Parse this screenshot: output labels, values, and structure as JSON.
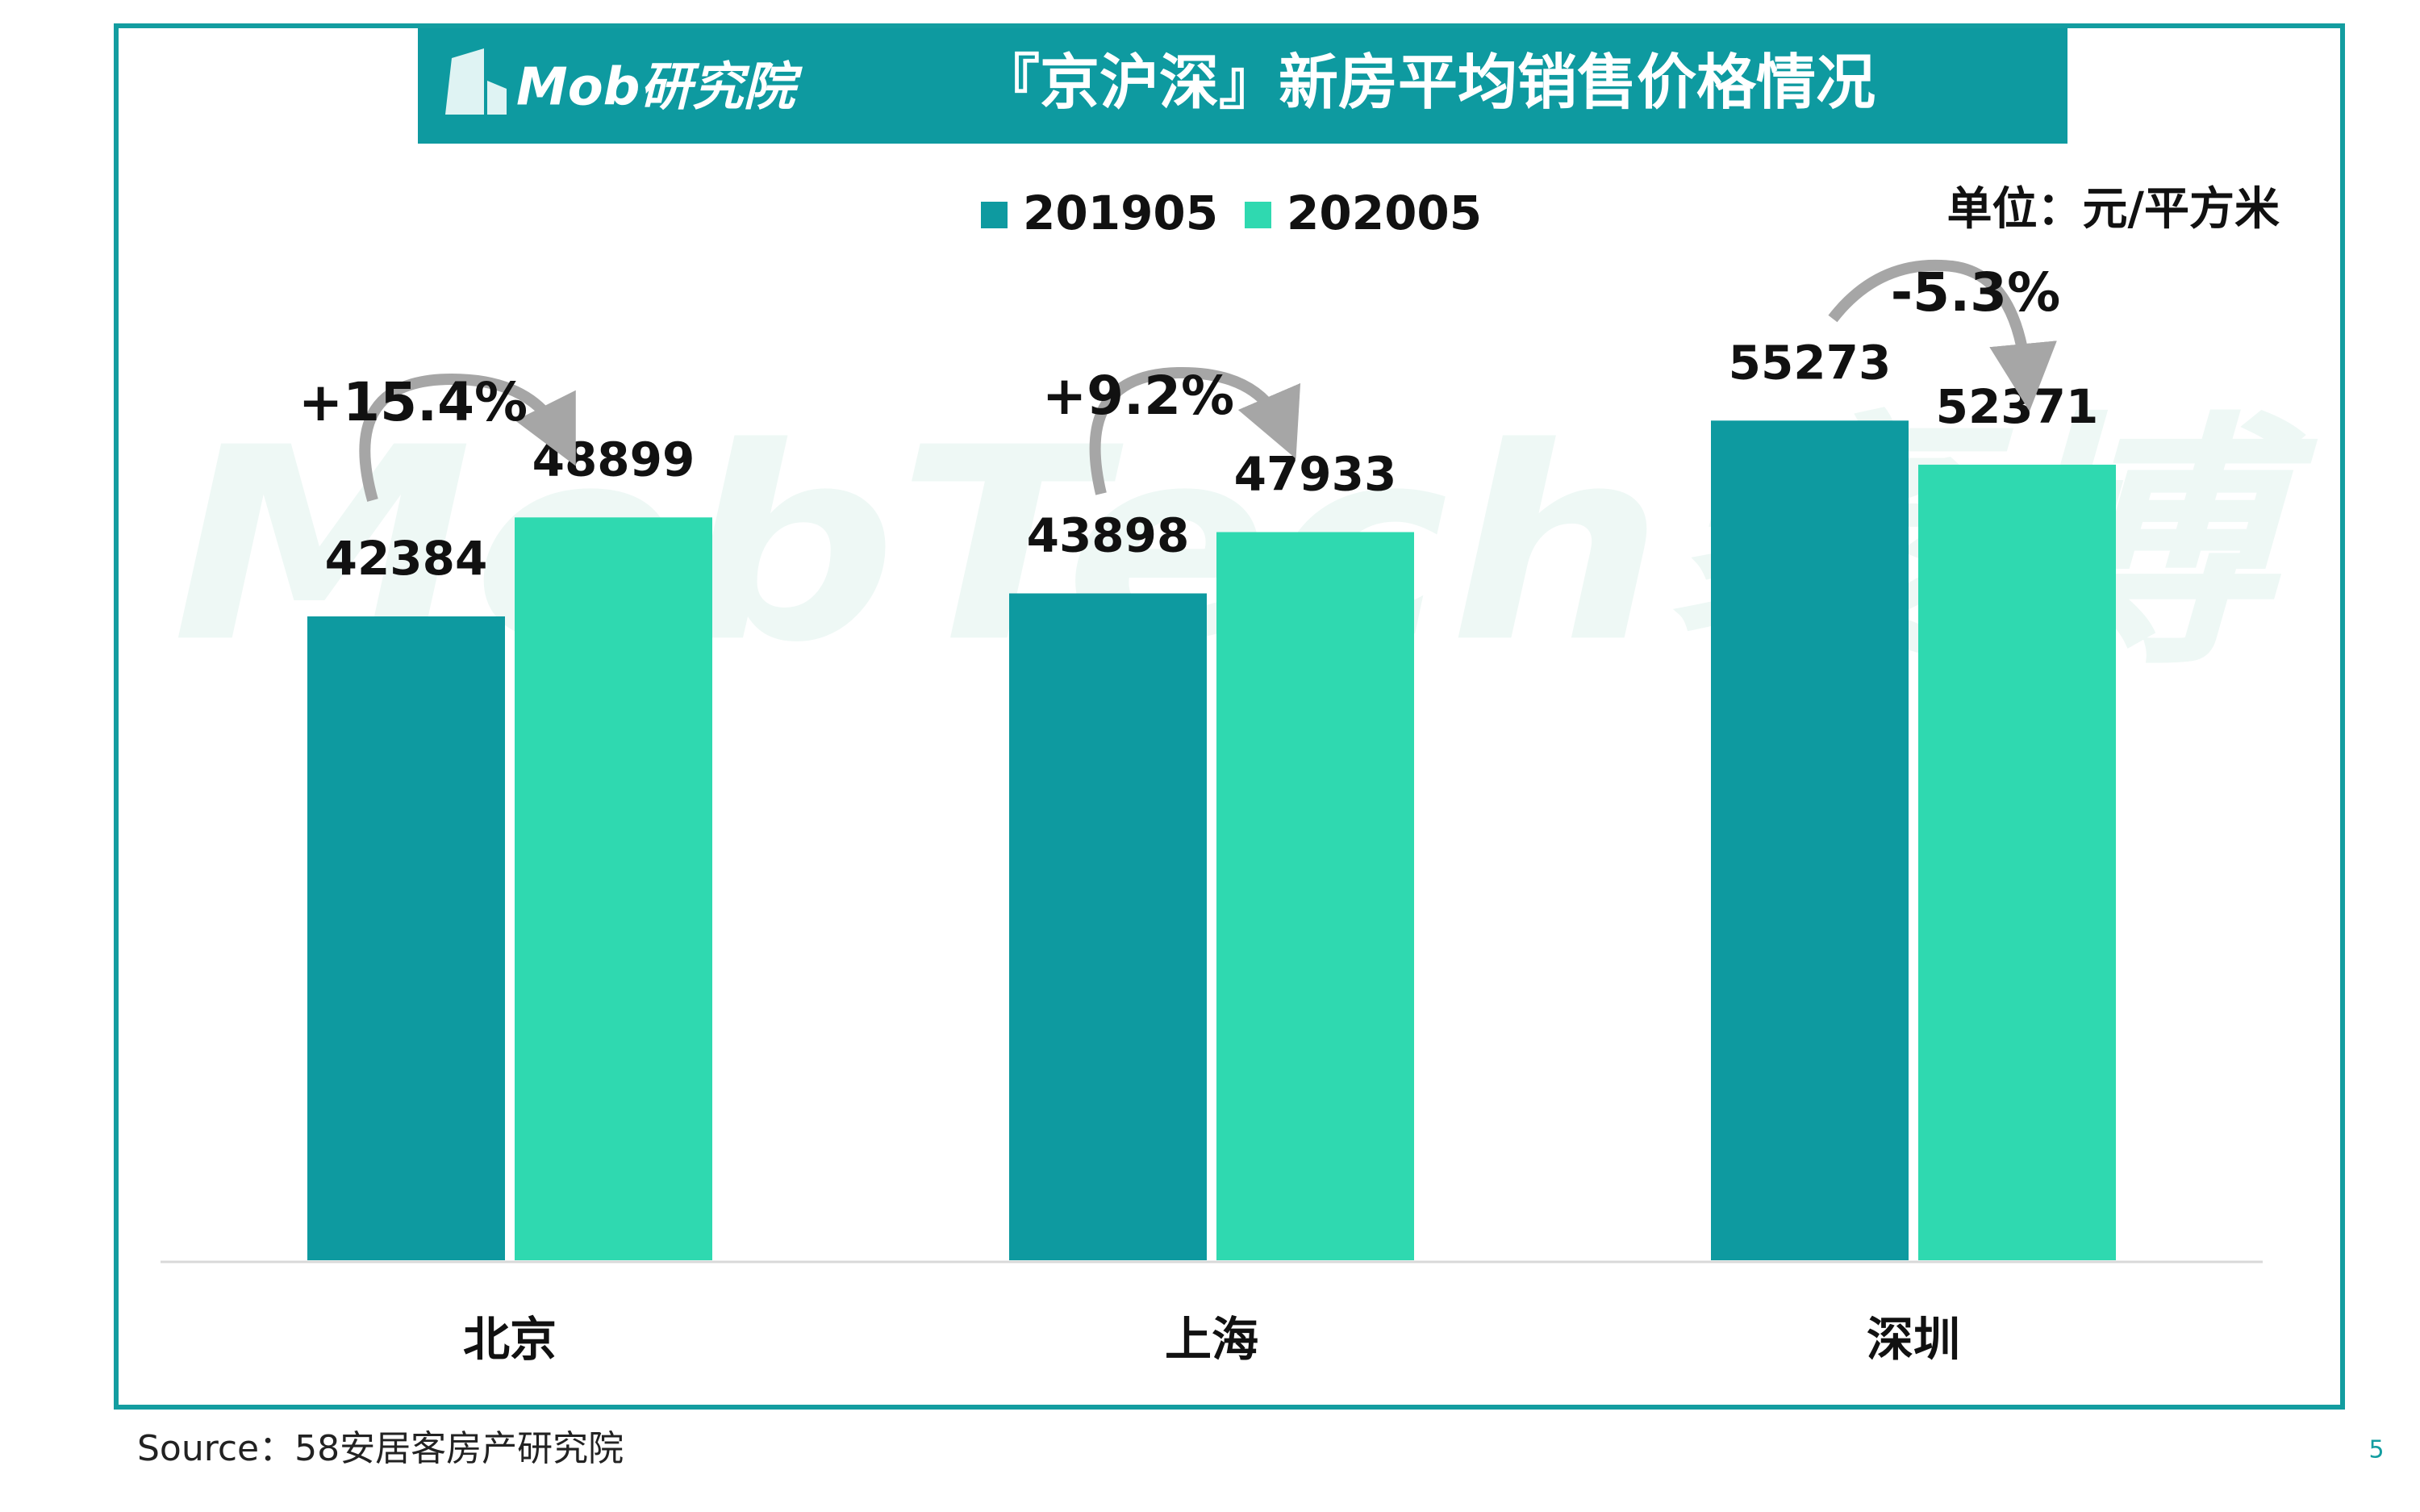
{
  "logo": "Mob研究院",
  "watermark": "MobTech袤博",
  "source": "Source：58安居客房产研究院",
  "page_number": "5",
  "chart_data": {
    "type": "bar",
    "title": "『京沪深』新房平均销售价格情况",
    "unit": "单位：元/平方米",
    "categories": [
      "北京",
      "上海",
      "深圳"
    ],
    "series": [
      {
        "name": "201905",
        "color": "#0e9aa0",
        "values": [
          42384,
          43898,
          55273
        ]
      },
      {
        "name": "202005",
        "color": "#2fd9b0",
        "values": [
          48899,
          47933,
          52371
        ]
      }
    ],
    "annotations": [
      "+15.4%",
      "+9.2%",
      "-5.3%"
    ],
    "ylim": [
      0,
      70000
    ]
  }
}
